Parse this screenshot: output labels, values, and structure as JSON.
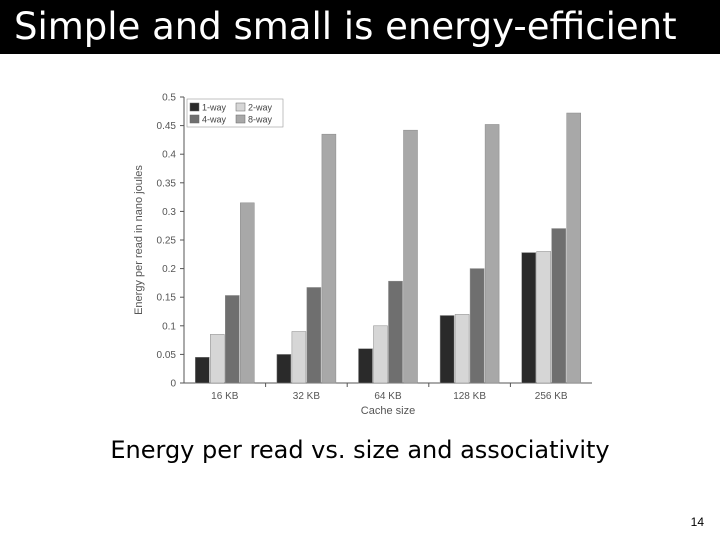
{
  "slide": {
    "title": "Simple and small is energy-efficient",
    "caption": "Energy per read vs. size and associativity",
    "page_number": "14"
  },
  "chart_data": {
    "type": "bar",
    "title": "",
    "xlabel": "Cache size",
    "ylabel": "Energy per read in nano joules",
    "ylim": [
      0,
      0.5
    ],
    "yticks": [
      0,
      0.05,
      0.1,
      0.15,
      0.2,
      0.25,
      0.3,
      0.35,
      0.4,
      0.45,
      0.5
    ],
    "ytick_labels": [
      "0",
      "0.05",
      "0.1",
      "0.15",
      "0.2",
      "0.25",
      "0.3",
      "0.35",
      "0.4",
      "0.45",
      "0.5"
    ],
    "categories": [
      "16 KB",
      "32 KB",
      "64 KB",
      "128 KB",
      "256 KB"
    ],
    "series": [
      {
        "name": "1-way",
        "color": "#2a2a2a",
        "values": [
          0.045,
          0.05,
          0.06,
          0.118,
          0.228
        ]
      },
      {
        "name": "2-way",
        "color": "#d6d6d6",
        "values": [
          0.085,
          0.09,
          0.1,
          0.12,
          0.23
        ]
      },
      {
        "name": "4-way",
        "color": "#6f6f6f",
        "values": [
          0.153,
          0.167,
          0.178,
          0.2,
          0.27
        ]
      },
      {
        "name": "8-way",
        "color": "#a8a8a8",
        "values": [
          0.315,
          0.435,
          0.442,
          0.452,
          0.472
        ]
      }
    ],
    "legend_position": "top-left",
    "grid": false
  }
}
